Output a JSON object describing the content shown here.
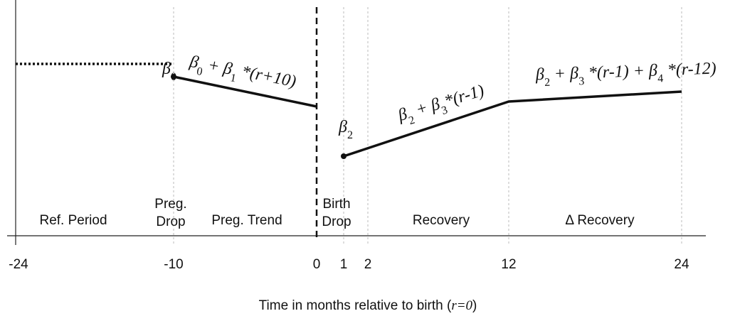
{
  "annotations": [
    {
      "parts": [
        "β",
        "0"
      ]
    },
    {
      "parts": [
        "β",
        "0",
        " + β",
        "1",
        " *(r+10)"
      ]
    },
    {
      "parts": [
        "β",
        "2"
      ]
    },
    {
      "parts": [
        "β",
        "2",
        " + β",
        "3",
        "*(r-1)"
      ]
    },
    {
      "parts": [
        "β",
        "2",
        " + β",
        "3",
        " *(r-1) + β",
        "4",
        " *(r-12)"
      ]
    }
  ],
  "regions": [
    [
      "Ref. Period"
    ],
    [
      "Preg.",
      "Drop"
    ],
    [
      "Preg. Trend"
    ],
    [
      "Birth",
      "Drop"
    ],
    [
      "Recovery"
    ],
    [
      "Δ Recovery"
    ]
  ],
  "x_axis": {
    "ticks": [
      "-24",
      "-10",
      "0",
      "1",
      "2",
      "12",
      "24"
    ],
    "label_parts": [
      "Time in months relative to birth (",
      "r=0",
      ")"
    ]
  }
}
